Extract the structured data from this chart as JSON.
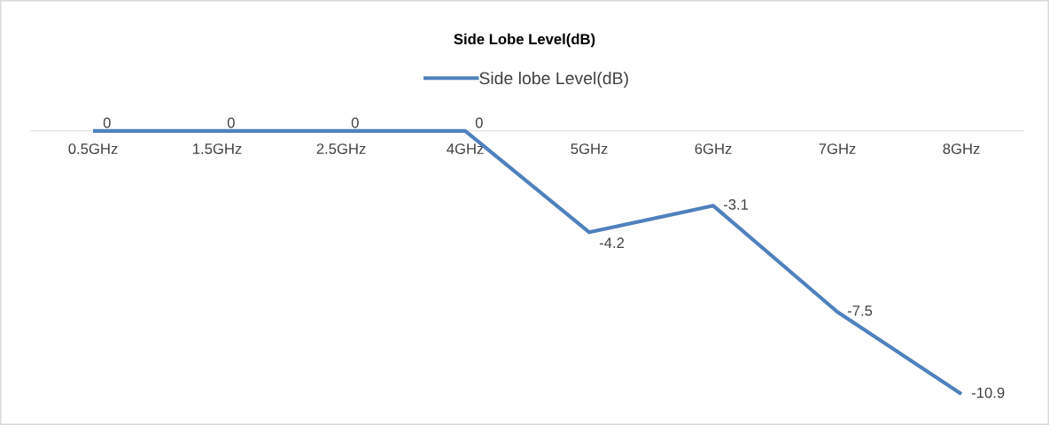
{
  "chart_data": {
    "type": "line",
    "title": "Side Lobe Level(dB)",
    "categories": [
      "0.5GHz",
      "1.5GHz",
      "2.5GHz",
      "4GHz",
      "5GHz",
      "6GHz",
      "7GHz",
      "8GHz"
    ],
    "series": [
      {
        "name": "Side lobe Level(dB)",
        "color": "#4f81bd",
        "values": [
          0,
          0,
          0,
          0,
          -4.2,
          -3.1,
          -7.5,
          -10.9
        ]
      }
    ],
    "tick_labels": "x",
    "data_labels": true,
    "legend": "top",
    "grid": false,
    "marker": "none",
    "line_style": "solid"
  }
}
